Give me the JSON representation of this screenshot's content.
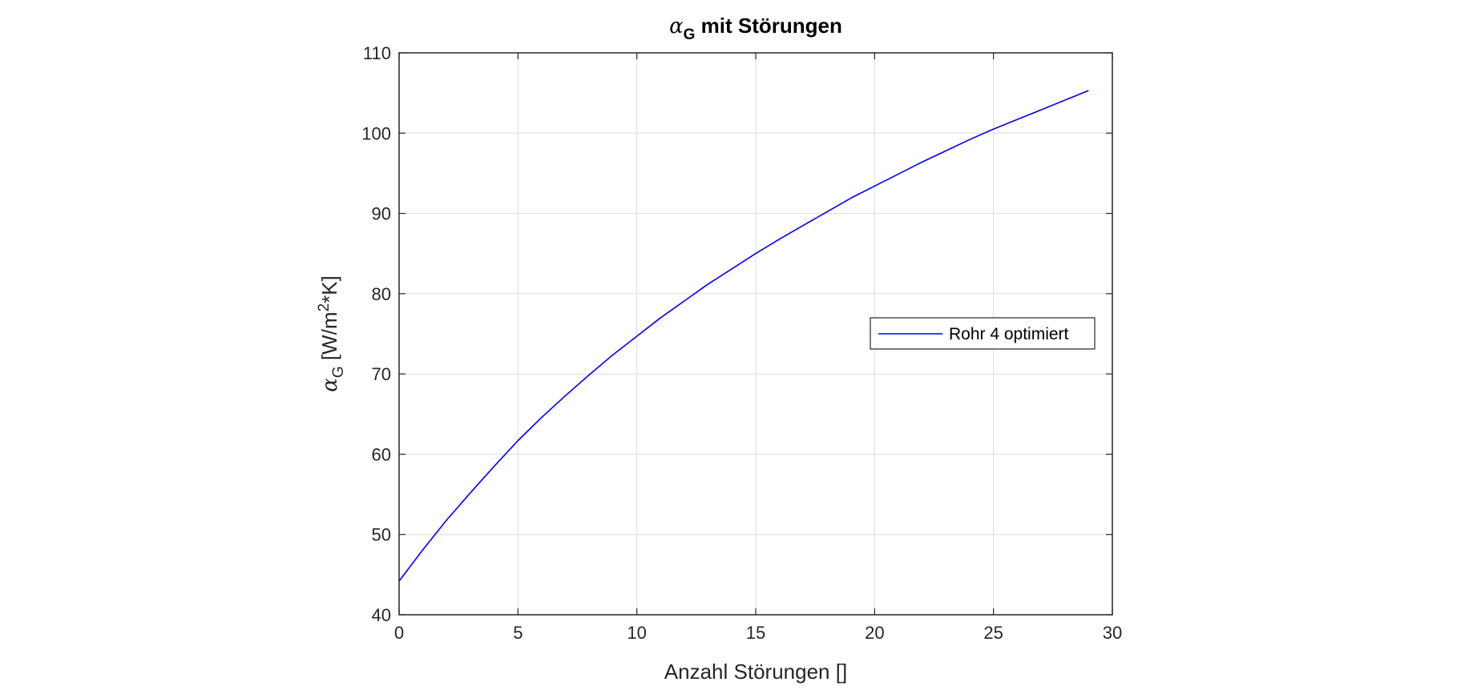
{
  "chart_data": {
    "type": "line",
    "title": {
      "symbol": "α",
      "subscript": "G",
      "text": " mit Störungen"
    },
    "xlabel": "Anzahl Störungen []",
    "ylabel": {
      "symbol": "α",
      "subscript": "G",
      "unit_pre": " [W/m",
      "unit_sup": "2",
      "unit_post": "*K]"
    },
    "xlim": [
      0,
      30
    ],
    "ylim": [
      40,
      110
    ],
    "xticks": [
      0,
      5,
      10,
      15,
      20,
      25,
      30
    ],
    "yticks": [
      40,
      50,
      60,
      70,
      80,
      90,
      100,
      110
    ],
    "grid": true,
    "legend_position": "right",
    "series": [
      {
        "name": "Rohr 4 optimiert",
        "color": "#0000ff",
        "x": [
          0,
          1,
          2,
          3,
          4,
          5,
          6,
          7,
          8,
          9,
          10,
          11,
          12,
          13,
          14,
          15,
          16,
          17,
          18,
          19,
          20,
          21,
          22,
          23,
          24,
          25,
          26,
          27,
          28,
          29
        ],
        "y": [
          44.2,
          48.1,
          51.8,
          55.2,
          58.5,
          61.7,
          64.6,
          67.3,
          69.9,
          72.4,
          74.7,
          77.0,
          79.1,
          81.2,
          83.1,
          85.0,
          86.8,
          88.5,
          90.2,
          91.9,
          93.4,
          94.9,
          96.4,
          97.8,
          99.2,
          100.5,
          101.7,
          102.9,
          104.1,
          105.3
        ]
      }
    ]
  }
}
